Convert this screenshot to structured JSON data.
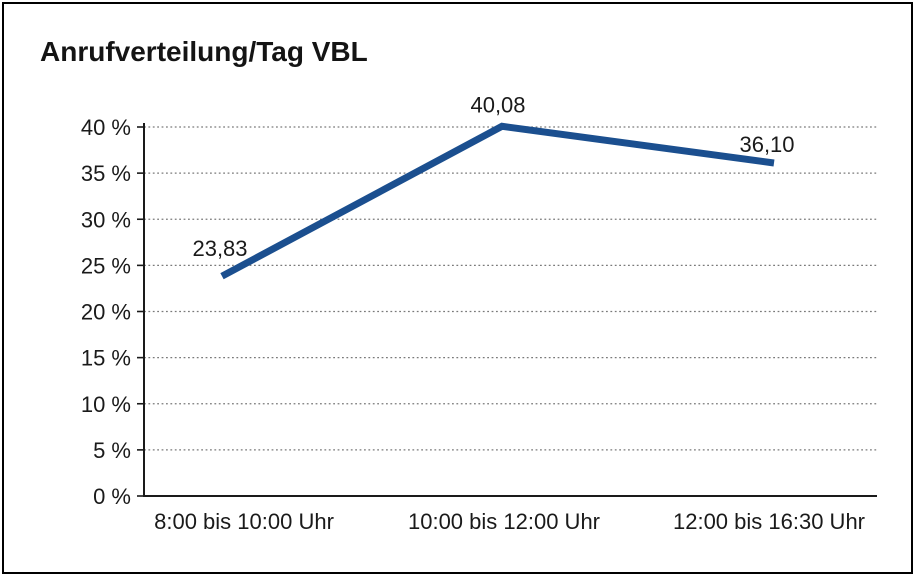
{
  "window": {
    "background_color": "#ffffff",
    "border_color": "#000000"
  },
  "chart_data": {
    "type": "line",
    "title": "Anrufverteilung/Tag VBL",
    "categories": [
      "8:00 bis 10:00 Uhr",
      "10:00 bis 12:00 Uhr",
      "12:00 bis 16:30 Uhr"
    ],
    "series": [
      {
        "name": "Anrufverteilung",
        "values": [
          23.83,
          40.08,
          36.1
        ]
      }
    ],
    "data_labels": [
      "23,83",
      "40,08",
      "36,10"
    ],
    "xlabel": "",
    "ylabel": "",
    "ylim": [
      0,
      40
    ],
    "ytick_step": 5,
    "ytick_labels": [
      "0 %",
      "5 %",
      "10 %",
      "15 %",
      "20 %",
      "25 %",
      "30 %",
      "35 %",
      "40 %"
    ],
    "grid": "horizontal-dotted",
    "legend": "none",
    "line_color": "#1b4f8f",
    "line_width": 7,
    "grid_color": "#7a7a7a",
    "axis_color": "#1a1a1a",
    "text_color": "#1a1a1a"
  }
}
